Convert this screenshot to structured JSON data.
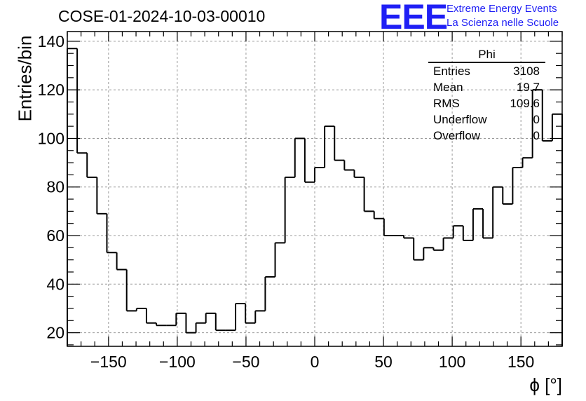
{
  "header": {
    "title": "COSE-01-2024-10-03-00010",
    "logo_text": "EEE",
    "logo_line1": "Extreme Energy Events",
    "logo_line2": "La Scienza nelle Scuole"
  },
  "stats_box": {
    "title": "Phi",
    "rows": [
      {
        "label": "Entries",
        "value": "3108"
      },
      {
        "label": "Mean",
        "value": "19.7"
      },
      {
        "label": "RMS",
        "value": "109.6"
      },
      {
        "label": "Underflow",
        "value": "0"
      },
      {
        "label": "Overflow",
        "value": "0"
      }
    ]
  },
  "chart_data": {
    "type": "bar",
    "style": "step-histogram",
    "xlabel": "ϕ [°]",
    "ylabel": "Entries/bin",
    "xlim": [
      -180,
      180
    ],
    "ylim": [
      14.4,
      144
    ],
    "grid": true,
    "bin_width": 7.2,
    "xticks": [
      -150,
      -100,
      -50,
      0,
      50,
      100,
      150
    ],
    "yticks": [
      20,
      40,
      60,
      80,
      100,
      120,
      140
    ],
    "values": [
      137,
      94,
      84,
      69,
      53,
      46,
      29,
      30,
      24,
      23,
      23,
      28,
      20,
      24,
      28,
      21,
      21,
      32,
      24,
      29,
      43,
      57,
      84,
      100,
      82,
      88,
      105,
      91,
      87,
      84,
      70,
      67,
      60,
      60,
      59,
      50,
      55,
      54,
      59,
      64,
      58,
      71,
      59,
      80,
      73,
      88,
      92,
      120,
      99,
      110
    ],
    "colors": {
      "line": "#000000",
      "grid": "#9a9a9a"
    }
  }
}
